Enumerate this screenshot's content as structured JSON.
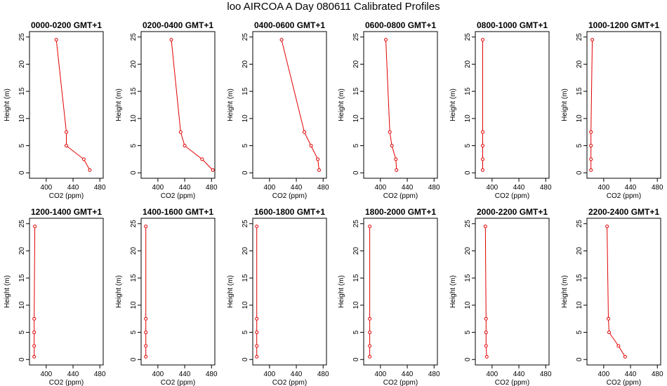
{
  "page_title": "loo AIRCOA A  Day 080611  Calibrated Profiles",
  "colors": {
    "line": "#e00000",
    "axis": "#000000"
  },
  "chart_data": [
    {
      "type": "line",
      "title": "0000-0200 GMT+1",
      "xlabel": "CO2 (ppm)",
      "ylabel": "Height (m)",
      "xlim": [
        375,
        485
      ],
      "ylim": [
        -1,
        26
      ],
      "xticks": [
        400,
        440,
        480
      ],
      "yticks": [
        0,
        5,
        10,
        15,
        20,
        25
      ],
      "grid": false,
      "x": [
        415,
        430,
        430,
        456,
        465
      ],
      "y": [
        24.5,
        7.5,
        5,
        2.5,
        0.5
      ]
    },
    {
      "type": "line",
      "title": "0200-0400 GMT+1",
      "xlabel": "CO2 (ppm)",
      "ylabel": "Height (m)",
      "xlim": [
        375,
        485
      ],
      "ylim": [
        -1,
        26
      ],
      "xticks": [
        400,
        440,
        480
      ],
      "yticks": [
        0,
        5,
        10,
        15,
        20,
        25
      ],
      "grid": false,
      "x": [
        420,
        434,
        440,
        466,
        482
      ],
      "y": [
        24.5,
        7.5,
        5,
        2.5,
        0.5
      ]
    },
    {
      "type": "line",
      "title": "0400-0600 GMT+1",
      "xlabel": "CO2 (ppm)",
      "ylabel": "Height (m)",
      "xlim": [
        375,
        485
      ],
      "ylim": [
        -1,
        26
      ],
      "xticks": [
        400,
        440,
        480
      ],
      "yticks": [
        0,
        5,
        10,
        15,
        20,
        25
      ],
      "grid": false,
      "x": [
        418,
        452,
        462,
        472,
        474
      ],
      "y": [
        24.5,
        7.5,
        5,
        2.5,
        0.5
      ]
    },
    {
      "type": "line",
      "title": "0600-0800 GMT+1",
      "xlabel": "CO2 (ppm)",
      "ylabel": "Height (m)",
      "xlim": [
        375,
        485
      ],
      "ylim": [
        -1,
        26
      ],
      "xticks": [
        400,
        440,
        480
      ],
      "yticks": [
        0,
        5,
        10,
        15,
        20,
        25
      ],
      "grid": false,
      "x": [
        408,
        414,
        417,
        423,
        424
      ],
      "y": [
        24.5,
        7.5,
        5,
        2.5,
        0.5
      ]
    },
    {
      "type": "line",
      "title": "0800-1000 GMT+1",
      "xlabel": "CO2 (ppm)",
      "ylabel": "Height (m)",
      "xlim": [
        375,
        485
      ],
      "ylim": [
        -1,
        26
      ],
      "xticks": [
        400,
        440,
        480
      ],
      "yticks": [
        0,
        5,
        10,
        15,
        20,
        25
      ],
      "grid": false,
      "x": [
        386,
        386,
        386,
        386,
        386
      ],
      "y": [
        24.5,
        7.5,
        5,
        2.5,
        0.5
      ]
    },
    {
      "type": "line",
      "title": "1000-1200 GMT+1",
      "xlabel": "CO2 (ppm)",
      "ylabel": "Height (m)",
      "xlim": [
        375,
        485
      ],
      "ylim": [
        -1,
        26
      ],
      "xticks": [
        400,
        440,
        480
      ],
      "yticks": [
        0,
        5,
        10,
        15,
        20,
        25
      ],
      "grid": false,
      "x": [
        383,
        381,
        381,
        381,
        381
      ],
      "y": [
        24.5,
        7.5,
        5,
        2.5,
        0.5
      ]
    },
    {
      "type": "line",
      "title": "1200-1400 GMT+1",
      "xlabel": "CO2 (ppm)",
      "ylabel": "Height (m)",
      "xlim": [
        375,
        485
      ],
      "ylim": [
        -1,
        26
      ],
      "xticks": [
        400,
        440,
        480
      ],
      "yticks": [
        0,
        5,
        10,
        15,
        20,
        25
      ],
      "grid": false,
      "x": [
        383,
        382,
        382,
        382,
        382
      ],
      "y": [
        24.5,
        7.5,
        5,
        2.5,
        0.5
      ]
    },
    {
      "type": "line",
      "title": "1400-1600 GMT+1",
      "xlabel": "CO2 (ppm)",
      "ylabel": "Height (m)",
      "xlim": [
        375,
        485
      ],
      "ylim": [
        -1,
        26
      ],
      "xticks": [
        400,
        440,
        480
      ],
      "yticks": [
        0,
        5,
        10,
        15,
        20,
        25
      ],
      "grid": false,
      "x": [
        382,
        382,
        382,
        382,
        382
      ],
      "y": [
        24.5,
        7.5,
        5,
        2.5,
        0.5
      ]
    },
    {
      "type": "line",
      "title": "1600-1800 GMT+1",
      "xlabel": "CO2 (ppm)",
      "ylabel": "Height (m)",
      "xlim": [
        375,
        485
      ],
      "ylim": [
        -1,
        26
      ],
      "xticks": [
        400,
        440,
        480
      ],
      "yticks": [
        0,
        5,
        10,
        15,
        20,
        25
      ],
      "grid": false,
      "x": [
        381,
        381,
        381,
        381,
        381
      ],
      "y": [
        24.5,
        7.5,
        5,
        2.5,
        0.5
      ]
    },
    {
      "type": "line",
      "title": "1800-2000 GMT+1",
      "xlabel": "CO2 (ppm)",
      "ylabel": "Height (m)",
      "xlim": [
        375,
        485
      ],
      "ylim": [
        -1,
        26
      ],
      "xticks": [
        400,
        440,
        480
      ],
      "yticks": [
        0,
        5,
        10,
        15,
        20,
        25
      ],
      "grid": false,
      "x": [
        384,
        384,
        384,
        384,
        384
      ],
      "y": [
        24.5,
        7.5,
        5,
        2.5,
        0.5
      ]
    },
    {
      "type": "line",
      "title": "2000-2200 GMT+1",
      "xlabel": "CO2 (ppm)",
      "ylabel": "Height (m)",
      "xlim": [
        375,
        485
      ],
      "ylim": [
        -1,
        26
      ],
      "xticks": [
        400,
        440,
        480
      ],
      "yticks": [
        0,
        5,
        10,
        15,
        20,
        25
      ],
      "grid": false,
      "x": [
        390,
        391,
        391,
        391,
        392
      ],
      "y": [
        24.5,
        7.5,
        5,
        2.5,
        0.5
      ]
    },
    {
      "type": "line",
      "title": "2200-2400 GMT+1",
      "xlabel": "CO2 (ppm)",
      "ylabel": "Height (m)",
      "xlim": [
        375,
        485
      ],
      "ylim": [
        -1,
        26
      ],
      "xticks": [
        400,
        440,
        480
      ],
      "yticks": [
        0,
        5,
        10,
        15,
        20,
        25
      ],
      "grid": false,
      "x": [
        405,
        407,
        408,
        422,
        432
      ],
      "y": [
        24.5,
        7.5,
        5,
        2.5,
        0.5
      ]
    }
  ]
}
